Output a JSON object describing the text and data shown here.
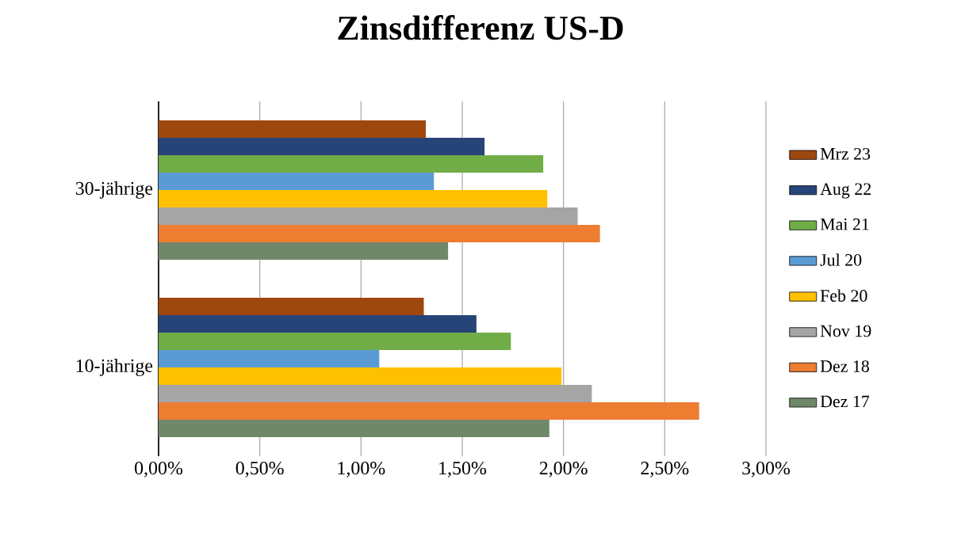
{
  "chart_data": {
    "type": "bar",
    "orientation": "horizontal",
    "title": "Zinsdifferenz US-D",
    "categories": [
      "30-jährige",
      "10-jährige"
    ],
    "series": [
      {
        "name": "Mrz 23",
        "color": "#9e480e",
        "values": [
          1.32,
          1.31
        ]
      },
      {
        "name": "Aug 22",
        "color": "#264478",
        "values": [
          1.61,
          1.57
        ]
      },
      {
        "name": "Mai 21",
        "color": "#70ad47",
        "values": [
          1.9,
          1.74
        ]
      },
      {
        "name": "Jul 20",
        "color": "#5b9bd5",
        "values": [
          1.36,
          1.09
        ]
      },
      {
        "name": "Feb 20",
        "color": "#ffc000",
        "values": [
          1.92,
          1.99
        ]
      },
      {
        "name": "Nov 19",
        "color": "#a5a5a5",
        "values": [
          2.07,
          2.14
        ]
      },
      {
        "name": "Dez 18",
        "color": "#ed7d31",
        "values": [
          2.18,
          2.67
        ]
      },
      {
        "name": "Dez 17",
        "color": "#70886a",
        "values": [
          1.43,
          1.93
        ]
      }
    ],
    "xlim": [
      0,
      3
    ],
    "xticks": [
      {
        "value": 0,
        "label": "0,00%"
      },
      {
        "value": 0.5,
        "label": "0,50%"
      },
      {
        "value": 1,
        "label": "1,00%"
      },
      {
        "value": 1.5,
        "label": "1,50%"
      },
      {
        "value": 2,
        "label": "2,00%"
      },
      {
        "value": 2.5,
        "label": "2,50%"
      },
      {
        "value": 3,
        "label": "3,00%"
      }
    ],
    "grid": "x",
    "legend": "right"
  }
}
